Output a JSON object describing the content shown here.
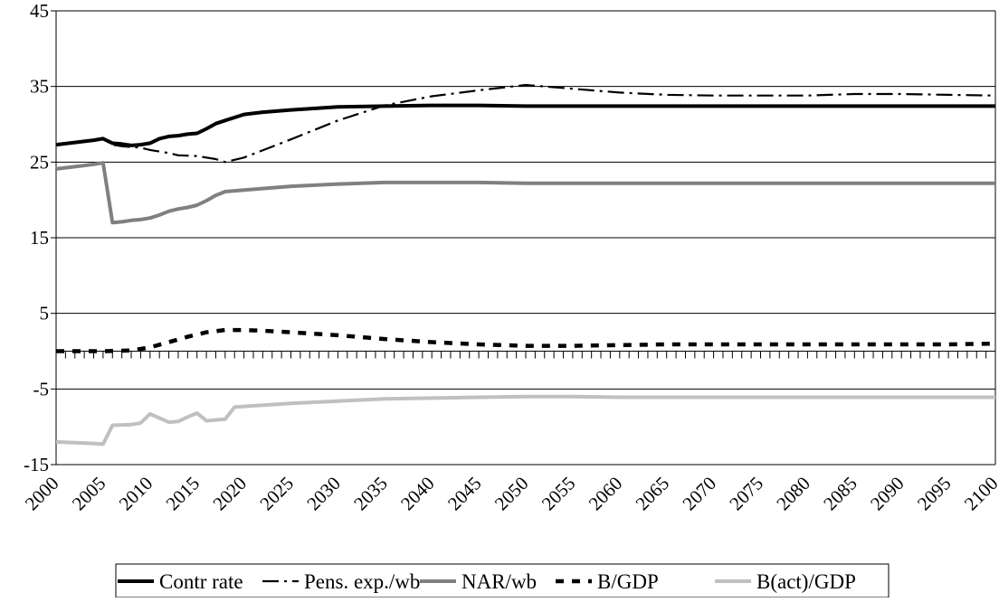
{
  "chart_data": {
    "type": "line",
    "title": "",
    "xlabel": "",
    "ylabel": "",
    "xlim": [
      2000,
      2100
    ],
    "ylim": [
      -15,
      45
    ],
    "y_ticks": [
      45,
      35,
      25,
      15,
      5,
      -5,
      -15
    ],
    "x_ticks": [
      2000,
      2005,
      2010,
      2015,
      2020,
      2025,
      2030,
      2035,
      2040,
      2045,
      2050,
      2055,
      2060,
      2065,
      2070,
      2075,
      2080,
      2085,
      2090,
      2095,
      2100
    ],
    "grid": "horizontal",
    "zero_axis_ticks": "yearly",
    "legend_position": "bottom",
    "series": [
      {
        "name": "Contr rate",
        "color": "#000000",
        "style": "solid",
        "points": [
          [
            2000,
            27.3
          ],
          [
            2002,
            27.6
          ],
          [
            2004,
            27.9
          ],
          [
            2005,
            28.1
          ],
          [
            2006,
            27.5
          ],
          [
            2007,
            27.4
          ],
          [
            2008,
            27.2
          ],
          [
            2009,
            27.3
          ],
          [
            2010,
            27.5
          ],
          [
            2011,
            28.1
          ],
          [
            2012,
            28.4
          ],
          [
            2013,
            28.5
          ],
          [
            2014,
            28.7
          ],
          [
            2015,
            28.8
          ],
          [
            2016,
            29.4
          ],
          [
            2017,
            30.1
          ],
          [
            2018,
            30.5
          ],
          [
            2019,
            30.9
          ],
          [
            2020,
            31.3
          ],
          [
            2022,
            31.6
          ],
          [
            2025,
            31.9
          ],
          [
            2030,
            32.3
          ],
          [
            2035,
            32.4
          ],
          [
            2040,
            32.5
          ],
          [
            2045,
            32.5
          ],
          [
            2050,
            32.4
          ],
          [
            2055,
            32.4
          ],
          [
            2060,
            32.4
          ],
          [
            2065,
            32.4
          ],
          [
            2070,
            32.4
          ],
          [
            2075,
            32.4
          ],
          [
            2080,
            32.4
          ],
          [
            2085,
            32.4
          ],
          [
            2090,
            32.4
          ],
          [
            2095,
            32.4
          ],
          [
            2100,
            32.4
          ]
        ]
      },
      {
        "name": "Pens. exp./wb",
        "color": "#000000",
        "style": "dashdot",
        "points": [
          [
            2000,
            27.3
          ],
          [
            2002,
            27.6
          ],
          [
            2004,
            27.9
          ],
          [
            2005,
            28.1
          ],
          [
            2006,
            27.3
          ],
          [
            2007,
            27.1
          ],
          [
            2008,
            27.0
          ],
          [
            2009,
            26.9
          ],
          [
            2010,
            26.6
          ],
          [
            2012,
            26.2
          ],
          [
            2013,
            25.9
          ],
          [
            2015,
            25.8
          ],
          [
            2017,
            25.4
          ],
          [
            2018,
            25.0
          ],
          [
            2020,
            25.6
          ],
          [
            2025,
            28.0
          ],
          [
            2030,
            30.5
          ],
          [
            2035,
            32.5
          ],
          [
            2040,
            33.7
          ],
          [
            2045,
            34.5
          ],
          [
            2050,
            35.2
          ],
          [
            2055,
            34.7
          ],
          [
            2060,
            34.2
          ],
          [
            2065,
            33.9
          ],
          [
            2070,
            33.8
          ],
          [
            2075,
            33.8
          ],
          [
            2080,
            33.8
          ],
          [
            2085,
            34.0
          ],
          [
            2090,
            34.0
          ],
          [
            2095,
            33.9
          ],
          [
            2100,
            33.8
          ]
        ]
      },
      {
        "name": "NAR/wb",
        "color": "#808080",
        "style": "solid-thick",
        "points": [
          [
            2000,
            24.1
          ],
          [
            2002,
            24.4
          ],
          [
            2004,
            24.7
          ],
          [
            2005,
            24.9
          ],
          [
            2006,
            17.0
          ],
          [
            2007,
            17.1
          ],
          [
            2008,
            17.3
          ],
          [
            2009,
            17.4
          ],
          [
            2010,
            17.6
          ],
          [
            2011,
            18.0
          ],
          [
            2012,
            18.5
          ],
          [
            2013,
            18.8
          ],
          [
            2014,
            19.0
          ],
          [
            2015,
            19.3
          ],
          [
            2016,
            19.9
          ],
          [
            2017,
            20.6
          ],
          [
            2018,
            21.1
          ],
          [
            2019,
            21.2
          ],
          [
            2020,
            21.3
          ],
          [
            2025,
            21.8
          ],
          [
            2030,
            22.1
          ],
          [
            2035,
            22.3
          ],
          [
            2040,
            22.3
          ],
          [
            2045,
            22.3
          ],
          [
            2050,
            22.2
          ],
          [
            2055,
            22.2
          ],
          [
            2060,
            22.2
          ],
          [
            2065,
            22.2
          ],
          [
            2070,
            22.2
          ],
          [
            2075,
            22.2
          ],
          [
            2080,
            22.2
          ],
          [
            2085,
            22.2
          ],
          [
            2090,
            22.2
          ],
          [
            2095,
            22.2
          ],
          [
            2100,
            22.2
          ]
        ]
      },
      {
        "name": "B/GDP",
        "color": "#000000",
        "style": "dashed-thick",
        "points": [
          [
            2000,
            0.0
          ],
          [
            2002,
            0.0
          ],
          [
            2005,
            0.0
          ],
          [
            2008,
            0.1
          ],
          [
            2010,
            0.5
          ],
          [
            2012,
            1.2
          ],
          [
            2014,
            1.9
          ],
          [
            2016,
            2.5
          ],
          [
            2018,
            2.8
          ],
          [
            2020,
            2.8
          ],
          [
            2022,
            2.7
          ],
          [
            2025,
            2.5
          ],
          [
            2030,
            2.1
          ],
          [
            2035,
            1.6
          ],
          [
            2040,
            1.2
          ],
          [
            2045,
            0.9
          ],
          [
            2050,
            0.7
          ],
          [
            2055,
            0.7
          ],
          [
            2060,
            0.8
          ],
          [
            2065,
            0.9
          ],
          [
            2070,
            0.9
          ],
          [
            2075,
            0.9
          ],
          [
            2080,
            0.9
          ],
          [
            2085,
            0.9
          ],
          [
            2090,
            0.9
          ],
          [
            2095,
            0.9
          ],
          [
            2100,
            1.0
          ]
        ]
      },
      {
        "name": "B(act)/GDP",
        "color": "#c0c0c0",
        "style": "solid-thick",
        "points": [
          [
            2000,
            -12.0
          ],
          [
            2002,
            -12.1
          ],
          [
            2004,
            -12.2
          ],
          [
            2005,
            -12.3
          ],
          [
            2006,
            -9.8
          ],
          [
            2008,
            -9.7
          ],
          [
            2009,
            -9.5
          ],
          [
            2010,
            -8.3
          ],
          [
            2012,
            -9.4
          ],
          [
            2013,
            -9.3
          ],
          [
            2014,
            -8.7
          ],
          [
            2015,
            -8.2
          ],
          [
            2016,
            -9.2
          ],
          [
            2017,
            -9.1
          ],
          [
            2018,
            -9.0
          ],
          [
            2019,
            -7.4
          ],
          [
            2020,
            -7.3
          ],
          [
            2025,
            -6.9
          ],
          [
            2030,
            -6.6
          ],
          [
            2035,
            -6.3
          ],
          [
            2040,
            -6.2
          ],
          [
            2045,
            -6.1
          ],
          [
            2050,
            -6.0
          ],
          [
            2055,
            -6.0
          ],
          [
            2060,
            -6.1
          ],
          [
            2065,
            -6.1
          ],
          [
            2070,
            -6.1
          ],
          [
            2075,
            -6.1
          ],
          [
            2080,
            -6.1
          ],
          [
            2085,
            -6.1
          ],
          [
            2090,
            -6.1
          ],
          [
            2095,
            -6.1
          ],
          [
            2100,
            -6.1
          ]
        ]
      }
    ]
  }
}
